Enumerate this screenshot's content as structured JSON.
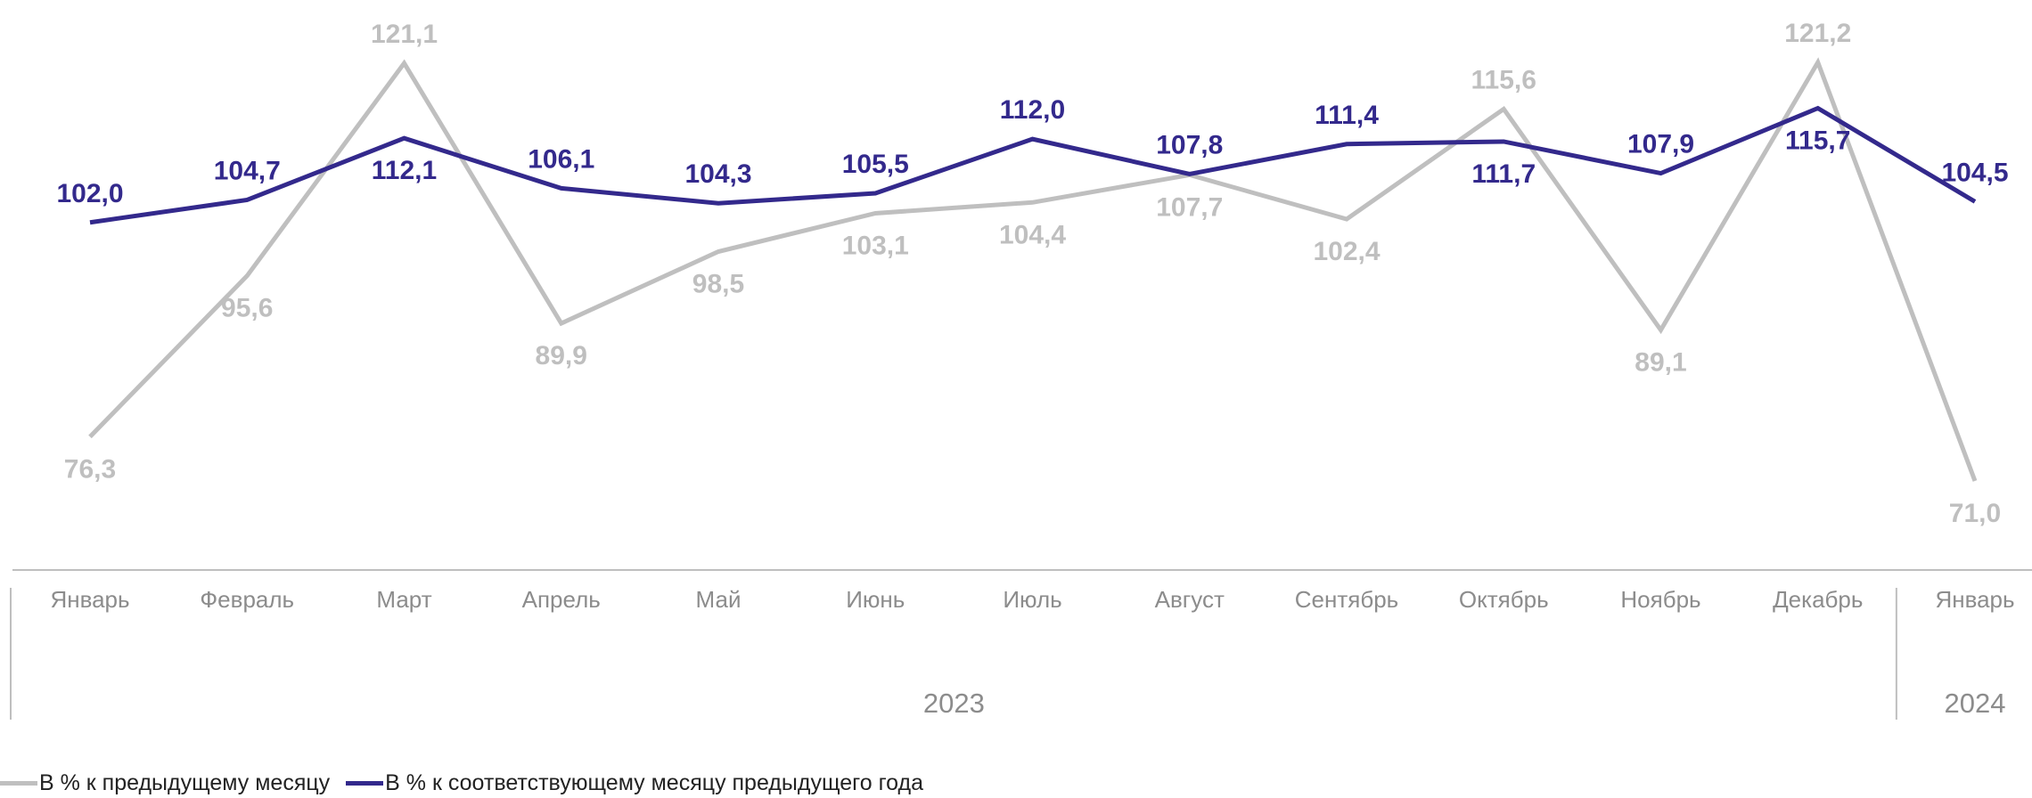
{
  "chart_data": {
    "type": "line",
    "categories": [
      "Январь",
      "Февраль",
      "Март",
      "Апрель",
      "Май",
      "Июнь",
      "Июль",
      "Август",
      "Сентябрь",
      "Октябрь",
      "Ноябрь",
      "Декабрь",
      "Январь"
    ],
    "years": [
      {
        "label": "2023",
        "from": 0,
        "to": 11
      },
      {
        "label": "2024",
        "from": 12,
        "to": 12
      }
    ],
    "series": [
      {
        "name": "В % к предыдущему месяцу",
        "color": "#bfbfbf",
        "values": [
          76.3,
          95.6,
          121.1,
          89.9,
          98.5,
          103.1,
          104.4,
          107.7,
          102.4,
          115.6,
          89.1,
          121.2,
          71.0
        ],
        "labels": [
          "76,3",
          "95,6",
          "121,1",
          "89,9",
          "98,5",
          "103,1",
          "104,4",
          "107,7",
          "102,4",
          "115,6",
          "89,1",
          "121,2",
          "71,0"
        ]
      },
      {
        "name": "В % к соответствующему месяцу предыдущего года",
        "color": "#33298c",
        "values": [
          102.0,
          104.7,
          112.1,
          106.1,
          104.3,
          105.5,
          112.0,
          107.8,
          111.4,
          111.7,
          107.9,
          115.7,
          104.5
        ],
        "labels": [
          "102,0",
          "104,7",
          "112,1",
          "106,1",
          "104,3",
          "105,5",
          "112,0",
          "107,8",
          "111,4",
          "111,7",
          "107,9",
          "115,7",
          "104,5"
        ]
      }
    ],
    "ylim": [
      68,
      125
    ],
    "grid": false,
    "legend_position": "bottom-left",
    "title": "",
    "xlabel": "",
    "ylabel": ""
  }
}
